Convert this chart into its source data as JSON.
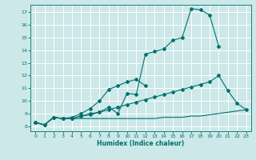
{
  "xlabel": "Humidex (Indice chaleur)",
  "background_color": "#cce8e8",
  "grid_color": "#ffffff",
  "line_color": "#007070",
  "xlim": [
    -0.5,
    23.5
  ],
  "ylim": [
    7.6,
    17.6
  ],
  "xticks": [
    0,
    1,
    2,
    3,
    4,
    5,
    6,
    7,
    8,
    9,
    10,
    11,
    12,
    13,
    14,
    15,
    16,
    17,
    18,
    19,
    20,
    21,
    22,
    23
  ],
  "yticks": [
    8,
    9,
    10,
    11,
    12,
    13,
    14,
    15,
    16,
    17
  ],
  "series1_x": [
    0,
    1,
    2,
    3,
    4,
    5,
    6,
    7,
    8,
    9,
    10,
    11,
    12,
    13,
    14,
    15,
    16,
    17,
    18,
    19,
    20
  ],
  "series1_y": [
    8.3,
    8.1,
    8.7,
    8.6,
    8.6,
    8.8,
    9.0,
    9.1,
    9.5,
    9.0,
    10.6,
    10.5,
    13.7,
    13.9,
    14.1,
    14.8,
    15.0,
    17.3,
    17.2,
    16.8,
    14.3
  ],
  "series2_x": [
    0,
    1,
    2,
    3,
    4,
    5,
    6,
    7,
    8,
    9,
    10,
    11,
    12
  ],
  "series2_y": [
    8.3,
    8.1,
    8.7,
    8.6,
    8.7,
    9.0,
    9.4,
    10.0,
    10.9,
    11.2,
    11.5,
    11.7,
    11.2
  ],
  "series3_x": [
    0,
    1,
    2,
    3,
    4,
    5,
    6,
    7,
    8,
    9,
    10,
    11,
    12,
    13,
    14,
    15,
    16,
    17,
    18,
    19,
    20,
    21,
    22,
    23
  ],
  "series3_y": [
    8.3,
    8.1,
    8.7,
    8.6,
    8.6,
    8.8,
    8.9,
    9.1,
    9.3,
    9.5,
    9.7,
    9.9,
    10.1,
    10.3,
    10.5,
    10.7,
    10.9,
    11.1,
    11.3,
    11.5,
    12.0,
    10.8,
    9.8,
    9.3
  ],
  "series4_x": [
    0,
    1,
    2,
    3,
    4,
    5,
    6,
    7,
    8,
    9,
    10,
    11,
    12,
    13,
    14,
    15,
    16,
    17,
    18,
    19,
    20,
    21,
    22,
    23
  ],
  "series4_y": [
    8.3,
    8.1,
    8.7,
    8.6,
    8.6,
    8.6,
    8.6,
    8.6,
    8.6,
    8.6,
    8.6,
    8.6,
    8.6,
    8.6,
    8.7,
    8.7,
    8.7,
    8.8,
    8.8,
    8.9,
    9.0,
    9.1,
    9.2,
    9.3
  ]
}
